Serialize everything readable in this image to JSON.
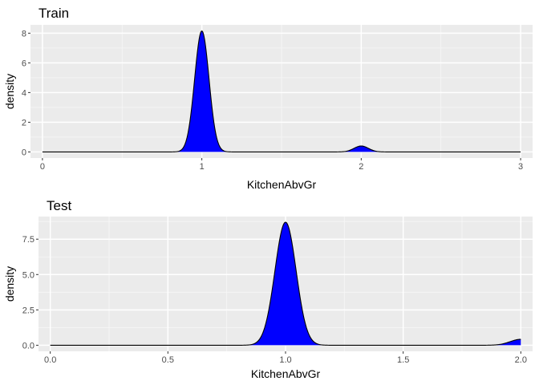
{
  "chart_data": [
    {
      "type": "area",
      "title": "Train",
      "xlabel": "KitchenAbvGr",
      "ylabel": "density",
      "xlim": [
        -0.075,
        3.075
      ],
      "ylim": [
        -0.41,
        8.56
      ],
      "x_ticks": [
        0,
        1,
        2,
        3
      ],
      "x_tick_labels": [
        "0",
        "1",
        "2",
        "3"
      ],
      "y_ticks": [
        0,
        2,
        4,
        6,
        8
      ],
      "y_tick_labels": [
        "0",
        "2",
        "4",
        "6",
        "8"
      ],
      "grid": true,
      "fill_color": "#0000ff",
      "peaks": [
        {
          "x": 1.0,
          "y": 8.15
        },
        {
          "x": 2.0,
          "y": 0.4
        }
      ],
      "x_range": [
        0,
        3
      ]
    },
    {
      "type": "area",
      "title": "Test",
      "xlabel": "KitchenAbvGr",
      "ylabel": "density",
      "xlim": [
        -0.05,
        2.05
      ],
      "ylim": [
        -0.43,
        9.1
      ],
      "x_ticks": [
        0,
        0.5,
        1,
        1.5,
        2
      ],
      "x_tick_labels": [
        "0.0",
        "0.5",
        "1.0",
        "1.5",
        "2.0"
      ],
      "y_ticks": [
        0,
        2.5,
        5,
        7.5
      ],
      "y_tick_labels": [
        "0.0",
        "2.5",
        "5.0",
        "7.5"
      ],
      "grid": true,
      "fill_color": "#0000ff",
      "peaks": [
        {
          "x": 1.0,
          "y": 8.7
        },
        {
          "x": 2.0,
          "y": 0.42
        }
      ],
      "x_range": [
        0,
        2
      ]
    }
  ]
}
